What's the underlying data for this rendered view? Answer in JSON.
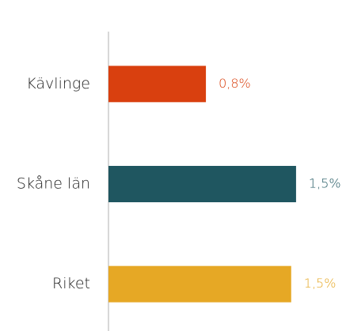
{
  "chart_data": {
    "type": "barh",
    "categories": [
      "Kävlinge",
      "Skåne län",
      "Riket"
    ],
    "values": [
      0.8,
      1.54,
      1.5
    ],
    "value_labels": [
      "0,8%",
      "1,5%",
      "1,5%"
    ],
    "colors": [
      "#d9400f",
      "#1f5660",
      "#e6a825"
    ],
    "xlim": [
      0,
      1.95
    ]
  }
}
